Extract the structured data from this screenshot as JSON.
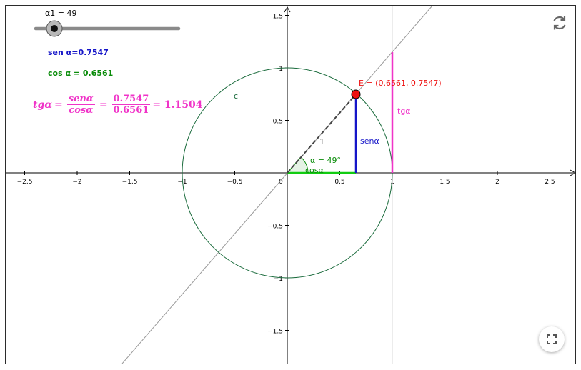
{
  "slider": {
    "label": "α1 = 49",
    "value": 49
  },
  "sen_text": "sen α=0.7547",
  "cos_text": "cos α = 0.6561",
  "tg_formula": {
    "lhs": "tgα",
    "f1_num": "senα",
    "f1_den": "cosα",
    "f2_num": "0.7547",
    "f2_den": "0.6561",
    "result": "= 1.1504"
  },
  "graph": {
    "x_ticks": [
      "−2.5",
      "−2",
      "−1.5",
      "−1",
      "−0.5",
      "0",
      "0.5",
      "1",
      "1.5",
      "2",
      "2.5"
    ],
    "y_ticks": [
      "1.5",
      "1",
      "0.5",
      "−0.5",
      "−1",
      "−1.5"
    ],
    "circle_label": "c",
    "point_label": "E = (0.6561, 0.7547)",
    "radius_label": "1",
    "angle_label": "α = 49°",
    "sen_label": "senα",
    "cos_label": "cosα",
    "tg_label": "tgα"
  },
  "colors": {
    "blue": "#1515c8",
    "green": "#0a8c0a",
    "magenta": "#f034c8",
    "point": "#ee1111",
    "circle": "#1a6b3c"
  },
  "icons": {
    "reset": "reset-icon",
    "fullscreen": "fullscreen-icon"
  }
}
